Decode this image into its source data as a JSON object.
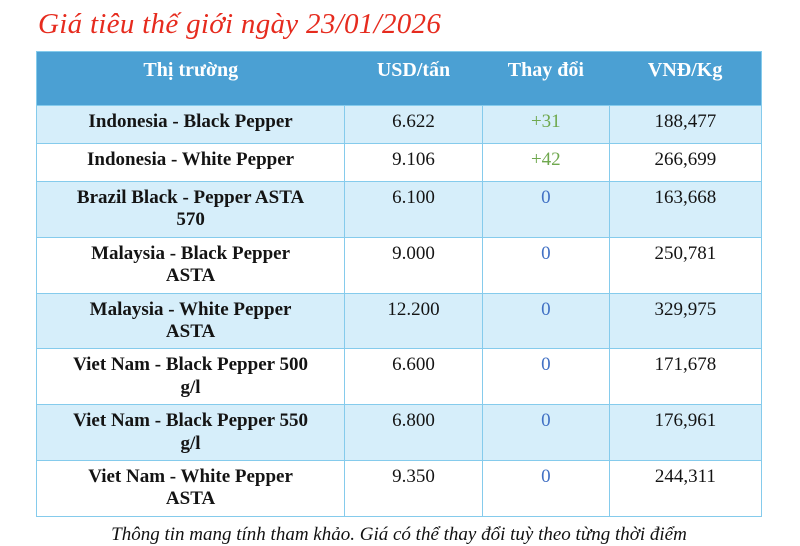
{
  "title": "Giá tiêu thế giới ngày 23/01/2026",
  "footer_note": "Thông tin mang tính tham khảo. Giá có thể thay đổi tuỳ theo từng thời điểm",
  "colors": {
    "title_red": "#e62b1e",
    "header_bg": "#4ba0d3",
    "header_text": "#ffffff",
    "row_bg": "#ffffff",
    "row_alt_bg": "#d6eefa",
    "border": "#85cbec",
    "change_positive": "#6fa84e",
    "change_zero": "#4170c4",
    "text": "#141414"
  },
  "chart_data": {
    "type": "table",
    "title": "Giá tiêu thế giới ngày 23/01/2026",
    "columns": [
      "Thị trường",
      "USD/tấn",
      "Thay đổi",
      "VNĐ/Kg"
    ],
    "rows": [
      {
        "market": "Indonesia - Black Pepper",
        "usd_per_ton": "6.622",
        "change": "+31",
        "change_type": "up",
        "vnd_per_kg": "188,477"
      },
      {
        "market": "Indonesia - White Pepper",
        "usd_per_ton": "9.106",
        "change": "+42",
        "change_type": "up",
        "vnd_per_kg": "266,699"
      },
      {
        "market": "Brazil Black - Pepper ASTA\n570",
        "usd_per_ton": "6.100",
        "change": "0",
        "change_type": "zero",
        "vnd_per_kg": "163,668"
      },
      {
        "market": "Malaysia - Black Pepper\nASTA",
        "usd_per_ton": "9.000",
        "change": "0",
        "change_type": "zero",
        "vnd_per_kg": "250,781"
      },
      {
        "market": "Malaysia - White Pepper\nASTA",
        "usd_per_ton": "12.200",
        "change": "0",
        "change_type": "zero",
        "vnd_per_kg": "329,975"
      },
      {
        "market": "Viet Nam - Black Pepper 500\ng/l",
        "usd_per_ton": "6.600",
        "change": "0",
        "change_type": "zero",
        "vnd_per_kg": "171,678"
      },
      {
        "market": "Viet Nam - Black Pepper 550\ng/l",
        "usd_per_ton": "6.800",
        "change": "0",
        "change_type": "zero",
        "vnd_per_kg": "176,961"
      },
      {
        "market": "Viet Nam - White Pepper\nASTA",
        "usd_per_ton": "9.350",
        "change": "0",
        "change_type": "zero",
        "vnd_per_kg": "244,311"
      }
    ]
  }
}
